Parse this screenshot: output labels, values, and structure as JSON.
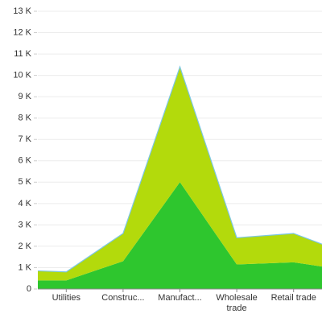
{
  "chart_data": {
    "type": "area",
    "stacked": true,
    "categories": [
      null,
      "Utilities",
      "Construc...",
      "Manufact...",
      "Wholesale trade",
      "Retail trade",
      null
    ],
    "series": [
      {
        "color": "#2ec62e",
        "values": [
          400,
          400,
          1300,
          5000,
          1150,
          1250,
          1050
        ]
      },
      {
        "color": "#b3da0c",
        "values": [
          450,
          400,
          1300,
          5400,
          1250,
          1350,
          1050
        ]
      }
    ],
    "line_color": "#7cc6e2",
    "ylim": [
      0,
      13000
    ],
    "yticks": [
      0,
      {
        "value": 1000,
        "label": "1 K"
      },
      {
        "value": 2000,
        "label": "2 K"
      },
      {
        "value": 3000,
        "label": "3 K"
      },
      {
        "value": 4000,
        "label": "4 K"
      },
      {
        "value": 5000,
        "label": "5 K"
      },
      {
        "value": 6000,
        "label": "6 K"
      },
      {
        "value": 7000,
        "label": "7 K"
      },
      {
        "value": 8000,
        "label": "8 K"
      },
      {
        "value": 9000,
        "label": "9 K"
      },
      {
        "value": 10000,
        "label": "10 K"
      },
      {
        "value": 11000,
        "label": "11 K"
      },
      {
        "value": 12000,
        "label": "12 K"
      },
      {
        "value": 13000,
        "label": "13 K"
      }
    ],
    "grid": true
  }
}
